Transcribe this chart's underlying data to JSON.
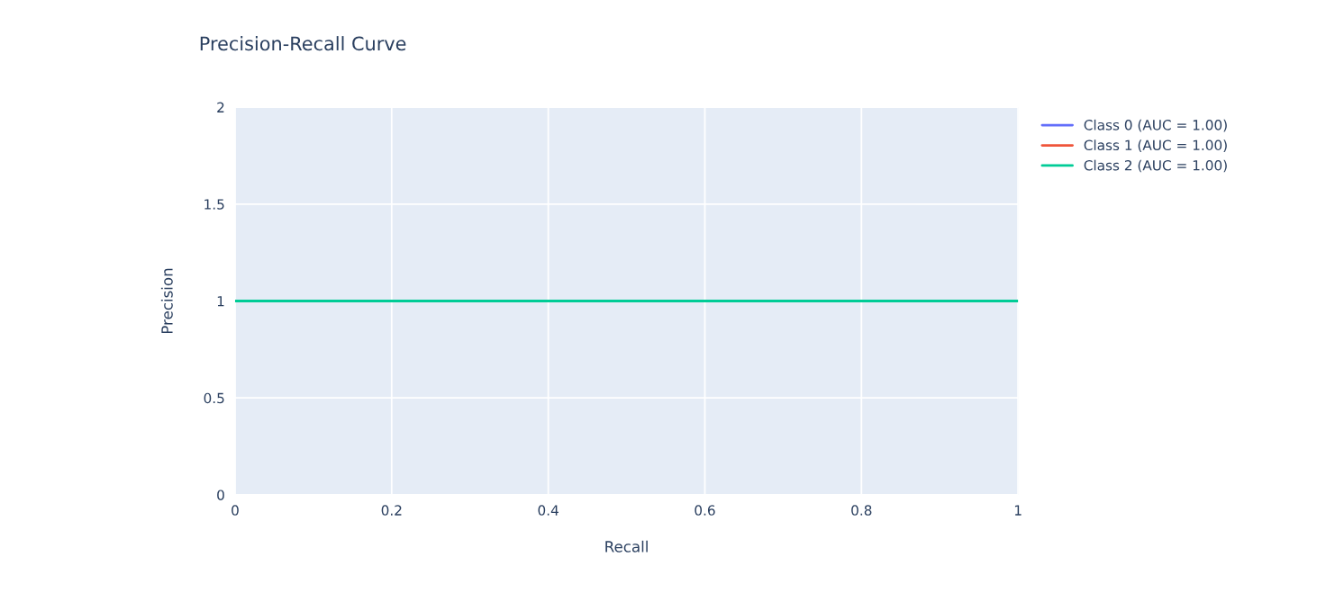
{
  "chart_data": {
    "type": "line",
    "title": "Precision-Recall Curve",
    "xlabel": "Recall",
    "ylabel": "Precision",
    "x": [
      0,
      1
    ],
    "series": [
      {
        "name": "Class 0 (AUC = 1.00)",
        "color": "#636efa",
        "values": [
          null,
          null
        ]
      },
      {
        "name": "Class 1 (AUC = 1.00)",
        "color": "#ef553b",
        "values": [
          null,
          null
        ]
      },
      {
        "name": "Class 2 (AUC = 1.00)",
        "color": "#00cc96",
        "values": [
          1,
          1
        ]
      }
    ],
    "xlim": [
      0,
      1
    ],
    "xticks": [
      0,
      0.2,
      0.4,
      0.6,
      0.8,
      1
    ],
    "ylim": [
      0,
      2
    ],
    "yticks": [
      0,
      0.5,
      1,
      1.5,
      2
    ],
    "grid": true,
    "legend": "right",
    "marker": "none",
    "line_style": "solid"
  }
}
